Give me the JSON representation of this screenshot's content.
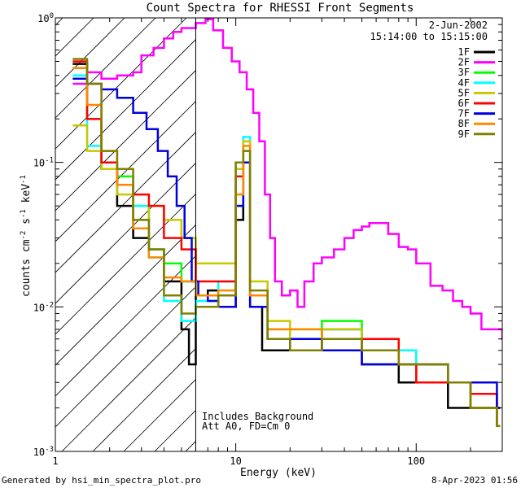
{
  "chart_data": {
    "type": "line",
    "title": "Count Spectra for RHESSI Front Segments",
    "xlabel": "Energy (keV)",
    "ylabel": "counts cm-2 s-1 keV-1",
    "xscale": "log",
    "yscale": "log",
    "xlim": [
      1,
      300
    ],
    "ylim": [
      0.001,
      1
    ],
    "x_tick_labels": [
      {
        "value": 1,
        "label": "1"
      },
      {
        "value": 10,
        "label": "10"
      },
      {
        "value": 100,
        "label": "100"
      }
    ],
    "y_tick_labels": [
      {
        "value": 1,
        "base": "10",
        "exp": "0"
      },
      {
        "value": 0.1,
        "base": "10",
        "exp": "-1"
      },
      {
        "value": 0.01,
        "base": "10",
        "exp": "-2"
      },
      {
        "value": 0.001,
        "base": "10",
        "exp": "-3"
      }
    ],
    "vertical_line_energy": 6.0,
    "hatch_region": {
      "from": 1.0,
      "to": 6.0
    },
    "info": {
      "date": "2-Jun-2002",
      "time_range": "15:14:00 to 15:15:00",
      "note_line1": "Includes Background",
      "note_line2": "Att A0, FD=Cm 0"
    },
    "series": [
      {
        "name": "1F",
        "color": "#000000",
        "points": [
          [
            1.3,
            0.48
          ],
          [
            1.5,
            0.2
          ],
          [
            1.8,
            0.09
          ],
          [
            2.2,
            0.05
          ],
          [
            2.7,
            0.03
          ],
          [
            3.3,
            0.025
          ],
          [
            4.0,
            0.015
          ],
          [
            5.0,
            0.007
          ],
          [
            5.5,
            0.004
          ],
          [
            6.0,
            0.012
          ],
          [
            7.0,
            0.013
          ],
          [
            8.0,
            0.01
          ],
          [
            10.0,
            0.04
          ],
          [
            11.0,
            0.1
          ],
          [
            12.0,
            0.01
          ],
          [
            14.0,
            0.005
          ],
          [
            20.0,
            0.006
          ],
          [
            30.0,
            0.007
          ],
          [
            50.0,
            0.004
          ],
          [
            80.0,
            0.003
          ],
          [
            100.0,
            0.004
          ],
          [
            150.0,
            0.002
          ],
          [
            200.0,
            0.002
          ],
          [
            280.0,
            0.0015
          ]
        ]
      },
      {
        "name": "2F",
        "color": "#ff00ff",
        "points": [
          [
            1.3,
            0.35
          ],
          [
            1.5,
            0.42
          ],
          [
            1.8,
            0.38
          ],
          [
            2.2,
            0.4
          ],
          [
            2.7,
            0.42
          ],
          [
            3.0,
            0.55
          ],
          [
            3.5,
            0.62
          ],
          [
            4.0,
            0.72
          ],
          [
            4.5,
            0.8
          ],
          [
            5.0,
            0.85
          ],
          [
            6.0,
            0.92
          ],
          [
            6.8,
            0.98
          ],
          [
            7.5,
            0.82
          ],
          [
            8.5,
            0.62
          ],
          [
            9.5,
            0.5
          ],
          [
            10.5,
            0.42
          ],
          [
            11.5,
            0.32
          ],
          [
            12.5,
            0.22
          ],
          [
            13.5,
            0.14
          ],
          [
            14.5,
            0.06
          ],
          [
            15.5,
            0.03
          ],
          [
            16.5,
            0.015
          ],
          [
            18.0,
            0.012
          ],
          [
            20.0,
            0.013
          ],
          [
            22.0,
            0.01
          ],
          [
            24.0,
            0.015
          ],
          [
            27.0,
            0.02
          ],
          [
            30.0,
            0.022
          ],
          [
            35.0,
            0.025
          ],
          [
            40.0,
            0.03
          ],
          [
            45.0,
            0.034
          ],
          [
            50.0,
            0.036
          ],
          [
            55.0,
            0.038
          ],
          [
            60.0,
            0.038
          ],
          [
            70.0,
            0.032
          ],
          [
            80.0,
            0.026
          ],
          [
            90.0,
            0.025
          ],
          [
            100.0,
            0.02
          ],
          [
            120.0,
            0.014
          ],
          [
            140.0,
            0.013
          ],
          [
            160.0,
            0.011
          ],
          [
            180.0,
            0.01
          ],
          [
            200.0,
            0.009
          ],
          [
            230.0,
            0.007
          ],
          [
            260.0,
            0.007
          ],
          [
            300.0,
            0.006
          ]
        ]
      },
      {
        "name": "3F",
        "color": "#00ff00",
        "points": [
          [
            1.3,
            0.45
          ],
          [
            1.5,
            0.2
          ],
          [
            1.8,
            0.1
          ],
          [
            2.2,
            0.08
          ],
          [
            2.7,
            0.05
          ],
          [
            3.3,
            0.025
          ],
          [
            4.0,
            0.02
          ],
          [
            5.0,
            0.015
          ],
          [
            6.0,
            0.012
          ],
          [
            8.0,
            0.012
          ],
          [
            10.0,
            0.05
          ],
          [
            11.0,
            0.12
          ],
          [
            12.0,
            0.012
          ],
          [
            15.0,
            0.007
          ],
          [
            20.0,
            0.007
          ],
          [
            30.0,
            0.008
          ],
          [
            50.0,
            0.006
          ],
          [
            80.0,
            0.005
          ],
          [
            100.0,
            0.004
          ],
          [
            150.0,
            0.003
          ],
          [
            200.0,
            0.002
          ],
          [
            280.0,
            0.002
          ]
        ]
      },
      {
        "name": "4F",
        "color": "#00ffff",
        "points": [
          [
            1.3,
            0.4
          ],
          [
            1.5,
            0.13
          ],
          [
            1.8,
            0.09
          ],
          [
            2.2,
            0.07
          ],
          [
            2.7,
            0.05
          ],
          [
            3.3,
            0.022
          ],
          [
            4.0,
            0.011
          ],
          [
            5.0,
            0.008
          ],
          [
            6.0,
            0.011
          ],
          [
            8.0,
            0.015
          ],
          [
            10.0,
            0.1
          ],
          [
            11.0,
            0.15
          ],
          [
            12.0,
            0.012
          ],
          [
            15.0,
            0.006
          ],
          [
            20.0,
            0.006
          ],
          [
            30.0,
            0.007
          ],
          [
            50.0,
            0.005
          ],
          [
            80.0,
            0.005
          ],
          [
            100.0,
            0.004
          ],
          [
            150.0,
            0.003
          ],
          [
            200.0,
            0.0025
          ],
          [
            280.0,
            0.002
          ]
        ]
      },
      {
        "name": "5F",
        "color": "#c8c800",
        "points": [
          [
            1.3,
            0.18
          ],
          [
            1.5,
            0.12
          ],
          [
            1.8,
            0.09
          ],
          [
            2.2,
            0.06
          ],
          [
            2.7,
            0.04
          ],
          [
            3.3,
            0.05
          ],
          [
            4.0,
            0.04
          ],
          [
            5.0,
            0.03
          ],
          [
            6.0,
            0.02
          ],
          [
            8.0,
            0.02
          ],
          [
            10.0,
            0.09
          ],
          [
            11.0,
            0.14
          ],
          [
            12.0,
            0.015
          ],
          [
            15.0,
            0.008
          ],
          [
            20.0,
            0.006
          ],
          [
            30.0,
            0.007
          ],
          [
            50.0,
            0.005
          ],
          [
            80.0,
            0.004
          ],
          [
            100.0,
            0.003
          ],
          [
            150.0,
            0.003
          ],
          [
            200.0,
            0.0025
          ],
          [
            280.0,
            0.002
          ]
        ]
      },
      {
        "name": "6F",
        "color": "#ff0000",
        "points": [
          [
            1.3,
            0.5
          ],
          [
            1.5,
            0.2
          ],
          [
            1.8,
            0.1
          ],
          [
            2.2,
            0.07
          ],
          [
            2.7,
            0.06
          ],
          [
            3.3,
            0.05
          ],
          [
            4.0,
            0.03
          ],
          [
            5.0,
            0.025
          ],
          [
            6.0,
            0.015
          ],
          [
            8.0,
            0.015
          ],
          [
            10.0,
            0.08
          ],
          [
            11.0,
            0.1
          ],
          [
            12.0,
            0.01
          ],
          [
            15.0,
            0.006
          ],
          [
            20.0,
            0.006
          ],
          [
            30.0,
            0.005
          ],
          [
            50.0,
            0.006
          ],
          [
            80.0,
            0.004
          ],
          [
            100.0,
            0.003
          ],
          [
            150.0,
            0.003
          ],
          [
            200.0,
            0.0025
          ],
          [
            280.0,
            0.002
          ]
        ]
      },
      {
        "name": "7F",
        "color": "#0000dd",
        "points": [
          [
            1.3,
            0.38
          ],
          [
            1.5,
            0.35
          ],
          [
            1.8,
            0.32
          ],
          [
            2.2,
            0.28
          ],
          [
            2.7,
            0.22
          ],
          [
            3.2,
            0.17
          ],
          [
            3.7,
            0.12
          ],
          [
            4.2,
            0.08
          ],
          [
            4.7,
            0.05
          ],
          [
            5.2,
            0.03
          ],
          [
            5.7,
            0.015
          ],
          [
            6.2,
            0.012
          ],
          [
            7.0,
            0.011
          ],
          [
            8.0,
            0.01
          ],
          [
            10.0,
            0.05
          ],
          [
            11.0,
            0.1
          ],
          [
            12.0,
            0.01
          ],
          [
            15.0,
            0.006
          ],
          [
            20.0,
            0.006
          ],
          [
            30.0,
            0.005
          ],
          [
            50.0,
            0.004
          ],
          [
            80.0,
            0.004
          ],
          [
            100.0,
            0.004
          ],
          [
            150.0,
            0.003
          ],
          [
            200.0,
            0.003
          ],
          [
            280.0,
            0.002
          ]
        ]
      },
      {
        "name": "8F",
        "color": "#ff8800",
        "points": [
          [
            1.3,
            0.45
          ],
          [
            1.5,
            0.25
          ],
          [
            1.8,
            0.12
          ],
          [
            2.2,
            0.07
          ],
          [
            2.7,
            0.035
          ],
          [
            3.3,
            0.022
          ],
          [
            4.0,
            0.016
          ],
          [
            5.0,
            0.015
          ],
          [
            6.0,
            0.012
          ],
          [
            8.0,
            0.013
          ],
          [
            10.0,
            0.06
          ],
          [
            11.0,
            0.13
          ],
          [
            12.0,
            0.012
          ],
          [
            15.0,
            0.007
          ],
          [
            20.0,
            0.007
          ],
          [
            30.0,
            0.006
          ],
          [
            50.0,
            0.005
          ],
          [
            80.0,
            0.004
          ],
          [
            100.0,
            0.004
          ],
          [
            150.0,
            0.003
          ],
          [
            200.0,
            0.002
          ],
          [
            280.0,
            0.0015
          ]
        ]
      },
      {
        "name": "9F",
        "color": "#808000",
        "points": [
          [
            1.3,
            0.52
          ],
          [
            1.5,
            0.35
          ],
          [
            1.8,
            0.12
          ],
          [
            2.2,
            0.09
          ],
          [
            2.7,
            0.04
          ],
          [
            3.3,
            0.025
          ],
          [
            4.0,
            0.012
          ],
          [
            5.0,
            0.009
          ],
          [
            6.0,
            0.01
          ],
          [
            8.0,
            0.012
          ],
          [
            10.0,
            0.1
          ],
          [
            11.0,
            0.12
          ],
          [
            12.0,
            0.013
          ],
          [
            15.0,
            0.006
          ],
          [
            20.0,
            0.005
          ],
          [
            30.0,
            0.006
          ],
          [
            50.0,
            0.005
          ],
          [
            80.0,
            0.004
          ],
          [
            100.0,
            0.004
          ],
          [
            150.0,
            0.003
          ],
          [
            200.0,
            0.002
          ],
          [
            280.0,
            0.0015
          ]
        ]
      }
    ]
  },
  "footer": {
    "generated_by": "Generated by hsi_min_spectra_plot.pro",
    "timestamp": "8-Apr-2023 01:56"
  }
}
